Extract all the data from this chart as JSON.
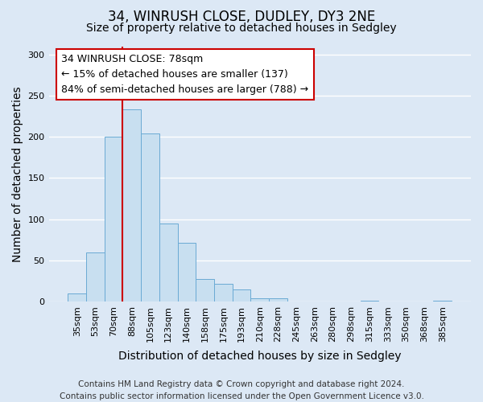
{
  "title": "34, WINRUSH CLOSE, DUDLEY, DY3 2NE",
  "subtitle": "Size of property relative to detached houses in Sedgley",
  "xlabel": "Distribution of detached houses by size in Sedgley",
  "ylabel": "Number of detached properties",
  "footer_line1": "Contains HM Land Registry data © Crown copyright and database right 2024.",
  "footer_line2": "Contains public sector information licensed under the Open Government Licence v3.0.",
  "annotation_title": "34 WINRUSH CLOSE: 78sqm",
  "annotation_line1": "← 15% of detached houses are smaller (137)",
  "annotation_line2": "84% of semi-detached houses are larger (788) →",
  "bar_labels": [
    "35sqm",
    "53sqm",
    "70sqm",
    "88sqm",
    "105sqm",
    "123sqm",
    "140sqm",
    "158sqm",
    "175sqm",
    "193sqm",
    "210sqm",
    "228sqm",
    "245sqm",
    "263sqm",
    "280sqm",
    "298sqm",
    "315sqm",
    "333sqm",
    "350sqm",
    "368sqm",
    "385sqm"
  ],
  "bar_values": [
    10,
    59,
    200,
    233,
    204,
    95,
    71,
    27,
    21,
    15,
    4,
    4,
    0,
    0,
    0,
    0,
    1,
    0,
    0,
    0,
    1
  ],
  "bar_color": "#c8dff0",
  "bar_edge_color": "#6aaad4",
  "red_line_color": "#cc0000",
  "ylim": [
    0,
    310
  ],
  "yticks": [
    0,
    50,
    100,
    150,
    200,
    250,
    300
  ],
  "annotation_box_facecolor": "#ffffff",
  "annotation_box_edgecolor": "#cc0000",
  "background_color": "#dce8f5",
  "grid_color": "#ffffff",
  "title_fontsize": 12,
  "subtitle_fontsize": 10,
  "axis_label_fontsize": 10,
  "tick_fontsize": 8,
  "annotation_fontsize": 9,
  "footer_fontsize": 7.5
}
